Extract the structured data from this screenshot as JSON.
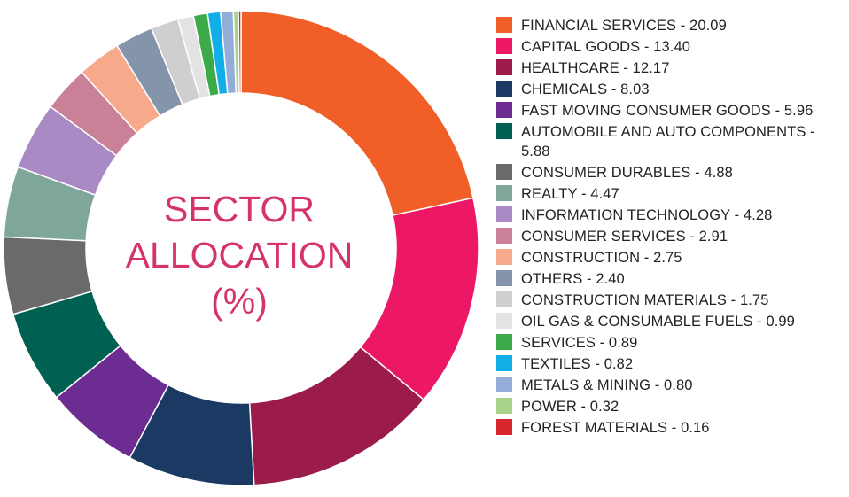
{
  "chart_data": {
    "type": "pie",
    "title_lines": [
      "SECTOR",
      "ALLOCATION",
      "(%)"
    ],
    "legend_position": "right",
    "slices": [
      {
        "label": "FINANCIAL SERVICES - 20.09",
        "value": 20.09,
        "color": "#f05f28"
      },
      {
        "label": "CAPITAL GOODS - 13.40",
        "value": 13.4,
        "color": "#ec1865"
      },
      {
        "label": "HEALTHCARE - 12.17",
        "value": 12.17,
        "color": "#9b1b4b"
      },
      {
        "label": "CHEMICALS - 8.03",
        "value": 8.03,
        "color": "#1b3a63"
      },
      {
        "label": "FAST MOVING CONSUMER GOODS - 5.96",
        "value": 5.96,
        "color": "#6d2c91"
      },
      {
        "label": "AUTOMOBILE AND AUTO COMPONENTS - 5.88",
        "value": 5.88,
        "color": "#006052"
      },
      {
        "label": "CONSUMER DURABLES - 4.88",
        "value": 4.88,
        "color": "#6a6a6a"
      },
      {
        "label": "REALTY - 4.47",
        "value": 4.47,
        "color": "#7fa69b"
      },
      {
        "label": "INFORMATION TECHNOLOGY - 4.28",
        "value": 4.28,
        "color": "#a98ac4"
      },
      {
        "label": "CONSUMER SERVICES - 2.91",
        "value": 2.91,
        "color": "#c88197"
      },
      {
        "label": "CONSTRUCTION - 2.75",
        "value": 2.75,
        "color": "#f6a98b"
      },
      {
        "label": "OTHERS - 2.40",
        "value": 2.4,
        "color": "#8394ab"
      },
      {
        "label": "CONSTRUCTION MATERIALS - 1.75",
        "value": 1.75,
        "color": "#cfcfcf"
      },
      {
        "label": "OIL GAS & CONSUMABLE FUELS - 0.99",
        "value": 0.99,
        "color": "#e3e3e3"
      },
      {
        "label": "SERVICES - 0.89",
        "value": 0.89,
        "color": "#3daa4a"
      },
      {
        "label": "TEXTILES - 0.82",
        "value": 0.82,
        "color": "#12aee8"
      },
      {
        "label": "METALS & MINING - 0.80",
        "value": 0.8,
        "color": "#94acd8"
      },
      {
        "label": "POWER - 0.32",
        "value": 0.32,
        "color": "#a8d48a"
      },
      {
        "label": "FOREST MATERIALS - 0.16",
        "value": 0.16,
        "color": "#d7262e"
      }
    ]
  }
}
